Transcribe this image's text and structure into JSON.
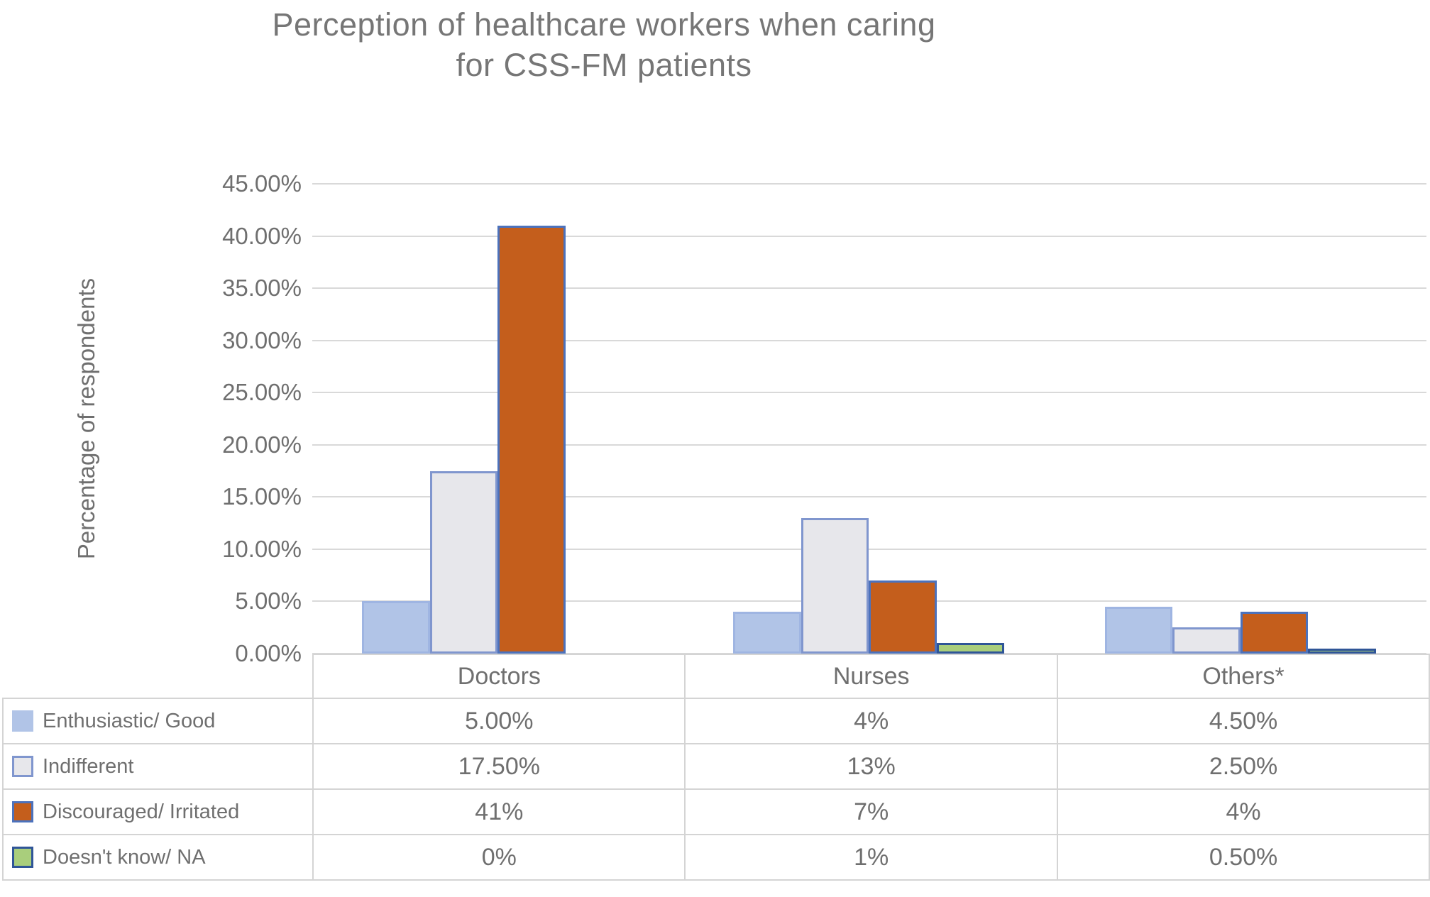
{
  "chart_data": {
    "type": "bar",
    "title": "Perception of healthcare workers when caring for CSS-FM patients",
    "title_lines": [
      "Perception of healthcare workers when caring",
      "for CSS-FM patients"
    ],
    "ylabel": "Percentage of respondents",
    "xlabel": "",
    "ylim": [
      0,
      45
    ],
    "grid": true,
    "y_ticks": [
      "45.00%",
      "40.00%",
      "35.00%",
      "30.00%",
      "25.00%",
      "20.00%",
      "15.00%",
      "10.00%",
      "5.00%",
      "0.00%"
    ],
    "categories": [
      "Doctors",
      "Nurses",
      "Others*"
    ],
    "legend_position": "table-left",
    "series": [
      {
        "name": "Enthusiastic/ Good",
        "values": [
          5,
          4,
          4.5
        ],
        "labels": [
          "5.00%",
          "4%",
          "4.50%"
        ],
        "fill": "#b1c4e7",
        "border": "#9fb5e2",
        "swatch_border": "#b1c4e7"
      },
      {
        "name": "Indifferent",
        "values": [
          17.5,
          13,
          2.5
        ],
        "labels": [
          "17.50%",
          "13%",
          "2.50%"
        ],
        "fill": "#e7e7eb",
        "border": "#8096ce",
        "swatch_border": "#8096ce"
      },
      {
        "name": "Discouraged/ Irritated",
        "values": [
          41,
          7,
          4
        ],
        "labels": [
          "41%",
          "7%",
          "4%"
        ],
        "fill": "#c45e1c",
        "border": "#4c72bc",
        "swatch_border": "#4c72bc"
      },
      {
        "name": "Doesn't know/ NA",
        "values": [
          0,
          1,
          0.5
        ],
        "labels": [
          "0%",
          "1%",
          "0.50%"
        ],
        "fill": "#a9ce7c",
        "border": "#2f5597",
        "swatch_border": "#2f5597"
      }
    ],
    "colors": {
      "gridline": "#d9d9d9",
      "table_border": "#d4d4d4",
      "title_text": "#767676",
      "axis_text": "#6f6f6f"
    }
  }
}
